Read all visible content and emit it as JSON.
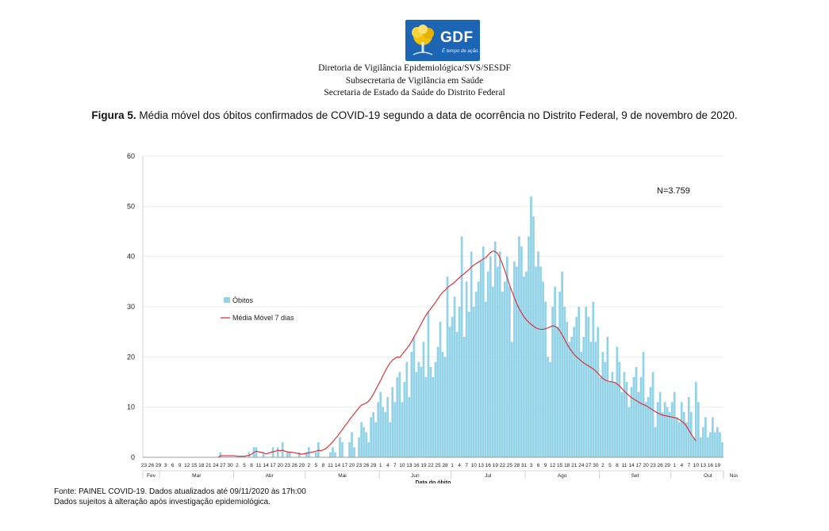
{
  "logo": {
    "text": "GDF",
    "slogan": "É tempo de ação."
  },
  "header": {
    "line1": "Diretoria de Vigilância Epidemiológica/SVS/SESDF",
    "line2": "Subsecretaria de Vigilância em Saúde",
    "line3": "Secretaria de Estado da Saúde do Distrito Federal"
  },
  "figure": {
    "label": "Figura 5.",
    "caption": " Média móvel dos óbitos confirmados de COVID-19 segundo a data de ocorrência no Distrito Federal, 9 de novembro de 2020."
  },
  "footer": {
    "line1": "Fonte: PAINEL COVID-19. Dados atualizados até 09/11/2020 às 17h:00",
    "line2": "Dados sujeitos à alteração após investigação epidemiológica."
  },
  "colors": {
    "bars": "#92d3e8",
    "line": "#e0252a",
    "grid": "#ececec"
  },
  "chart_data": {
    "type": "bar",
    "xlabel": "Data do óbito",
    "ylabel": "",
    "ylim": [
      0,
      60
    ],
    "yticks": [
      0,
      10,
      20,
      30,
      40,
      50,
      60
    ],
    "grid": true,
    "legend_position": "left",
    "annotation": "N=3.759",
    "x_start": "2020-02-23",
    "x_end": "2020-11-08",
    "series": [
      {
        "name": "Óbitos",
        "type": "bar",
        "values": [
          0,
          0,
          0,
          0,
          0,
          0,
          0,
          0,
          0,
          0,
          0,
          0,
          0,
          0,
          0,
          0,
          0,
          0,
          0,
          0,
          0,
          0,
          0,
          0,
          0,
          0,
          0,
          0,
          0,
          0,
          0,
          0,
          1,
          0,
          0,
          0,
          0,
          0,
          0,
          0,
          0,
          0,
          0,
          0,
          1,
          0,
          2,
          2,
          0,
          0,
          1,
          0,
          0,
          0,
          2,
          0,
          2,
          0,
          3,
          0,
          1,
          1,
          0,
          0,
          0,
          1,
          0,
          0,
          1,
          2,
          0,
          0,
          1,
          3,
          0,
          0,
          0,
          0,
          1,
          2,
          1,
          0,
          4,
          3,
          0,
          0,
          3,
          5,
          2,
          0,
          4,
          7,
          6,
          5,
          3,
          8,
          9,
          7,
          11,
          13,
          10,
          9,
          12,
          7,
          14,
          11,
          16,
          17,
          11,
          15,
          19,
          12,
          21,
          24,
          17,
          19,
          18,
          23,
          16,
          29,
          18,
          16,
          19,
          22,
          27,
          21,
          20,
          36,
          26,
          28,
          32,
          25,
          30,
          44,
          24,
          35,
          29,
          41,
          30,
          33,
          35,
          39,
          42,
          31,
          37,
          40,
          34,
          43,
          38,
          41,
          33,
          35,
          40,
          34,
          23,
          39,
          38,
          44,
          42,
          36,
          37,
          44,
          52,
          48,
          38,
          41,
          38,
          35,
          31,
          20,
          19,
          30,
          34,
          26,
          33,
          37,
          30,
          27,
          23,
          24,
          26,
          28,
          30,
          21,
          24,
          30,
          28,
          23,
          31,
          23,
          26,
          16,
          21,
          19,
          24,
          15,
          17,
          15,
          22,
          19,
          13,
          17,
          15,
          10,
          14,
          16,
          18,
          13,
          16,
          21,
          11,
          12,
          14,
          17,
          6,
          11,
          13,
          9,
          11,
          10,
          9,
          11,
          13,
          8,
          7,
          11,
          9,
          7,
          12,
          9,
          4,
          15,
          11,
          4,
          6,
          8,
          4,
          5,
          8,
          5,
          6,
          5,
          3
        ]
      },
      {
        "name": "Média Móvel  7 dias",
        "type": "line",
        "values": [
          0,
          0,
          0,
          0,
          0,
          0,
          0,
          0,
          0,
          0,
          0,
          0,
          0,
          0,
          0,
          0,
          0,
          0,
          0,
          0,
          0,
          0,
          0,
          0,
          0,
          0,
          0,
          0,
          0,
          0,
          0,
          0,
          0.3,
          0.3,
          0.3,
          0.3,
          0.3,
          0.3,
          0.3,
          0.2,
          0.2,
          0.2,
          0.2,
          0.3,
          0.4,
          0.6,
          1,
          1.2,
          1.1,
          1,
          0.9,
          0.7,
          0.8,
          1,
          1.1,
          1.2,
          1.4,
          1.3,
          1.4,
          1.2,
          1.1,
          1,
          1,
          0.9,
          0.8,
          0.7,
          0.6,
          0.7,
          0.8,
          0.9,
          1,
          1.1,
          1.2,
          1.4,
          1.3,
          1.5,
          1.7,
          2.1,
          2.6,
          3.1,
          3.7,
          4.2,
          4.9,
          5.5,
          6.2,
          6.8,
          7.5,
          8.1,
          8.7,
          9.3,
          9.9,
          10.4,
          10.6,
          10.8,
          11.2,
          11.8,
          12.6,
          13.5,
          14.4,
          15.3,
          16.3,
          17.2,
          18.1,
          18.8,
          19.4,
          19.7,
          20,
          19.9,
          20.5,
          21.1,
          21.7,
          22.3,
          23.1,
          24,
          24.8,
          25.7,
          26.6,
          27.5,
          28.3,
          29,
          29.6,
          30.2,
          30.9,
          31.6,
          32.3,
          32.9,
          33.3,
          33.8,
          34.2,
          34.5,
          34.9,
          35.4,
          35.8,
          36.2,
          36.6,
          37,
          37.4,
          37.9,
          38.3,
          38.6,
          38.9,
          39.2,
          39.5,
          39.8,
          40.3,
          40.8,
          41.1,
          41,
          40.6,
          39.7,
          38.5,
          37.2,
          35.8,
          34.3,
          33,
          31.8,
          30.6,
          29.6,
          28.8,
          28,
          27.4,
          26.9,
          26.5,
          26.1,
          25.8,
          25.6,
          25.5,
          25.5,
          25.6,
          25.8,
          26,
          26.2,
          26.1,
          25.8,
          25.2,
          24.4,
          23.5,
          22.6,
          21.8,
          21.1,
          20.5,
          20,
          19.6,
          19.2,
          18.8,
          18.5,
          18.2,
          17.9,
          17.6,
          17.2,
          16.7,
          16.2,
          15.7,
          15.4,
          15.2,
          15.1,
          15,
          14.9,
          14.6,
          14.2,
          13.7,
          13.2,
          12.7,
          12.3,
          11.9,
          11.6,
          11.3,
          11,
          10.7,
          10.5,
          10.3,
          10,
          9.7,
          9.4,
          9.1,
          8.8,
          8.6,
          8.4,
          8.3,
          8.2,
          8.1,
          8,
          7.9,
          7.8,
          7.5,
          7.2,
          6.8,
          6.2,
          5.4,
          4.6,
          3.9,
          3.3
        ]
      }
    ],
    "tick_labels": [
      "23",
      "26",
      "29",
      "3",
      "6",
      "9",
      "12",
      "15",
      "18",
      "21",
      "24",
      "27",
      "30",
      "2",
      "5",
      "8",
      "11",
      "14",
      "17",
      "20",
      "23",
      "26",
      "29",
      "2",
      "5",
      "8",
      "11",
      "14",
      "17",
      "20",
      "23",
      "26",
      "29",
      "1",
      "4",
      "7",
      "10",
      "13",
      "16",
      "19",
      "22",
      "25",
      "28",
      "1",
      "4",
      "7",
      "10",
      "13",
      "16",
      "19",
      "22",
      "25",
      "28",
      "31",
      "3",
      "6",
      "9",
      "12",
      "15",
      "18",
      "21",
      "24",
      "27",
      "30",
      "2",
      "5",
      "8",
      "11",
      "14",
      "17",
      "20",
      "23",
      "26",
      "29",
      "1",
      "4",
      "7",
      "10",
      "13",
      "16",
      "19",
      "22",
      "25",
      "28",
      "31",
      "3",
      "6",
      "9",
      "12",
      "15",
      "18",
      "21",
      "24",
      "27",
      "30",
      "2",
      "5",
      "8",
      "11",
      "14",
      "17",
      "20",
      "23",
      "26",
      "29",
      "1",
      "4",
      "7"
    ],
    "months": [
      "Fev",
      "Mar",
      "Abr",
      "Mai",
      "Jun",
      "Jul",
      "Ago",
      "Set",
      "Out",
      "Nov"
    ]
  }
}
